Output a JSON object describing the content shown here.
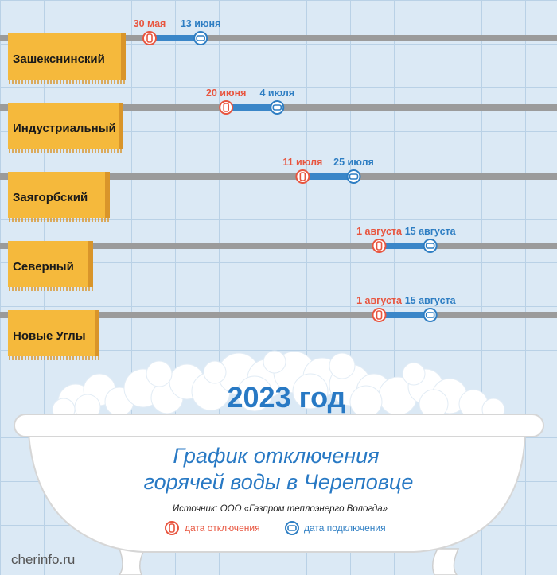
{
  "chart_data": {
    "type": "gantt",
    "title": "2023 год",
    "subtitle": "График отключения горячей воды в Череповце",
    "rows": [
      {
        "district": "Зашекснинский",
        "off_label": "30 мая",
        "on_label": "13 июня",
        "off_date": "2023-05-30",
        "on_date": "2023-06-13"
      },
      {
        "district": "Индустриальный",
        "off_label": "20 июня",
        "on_label": "4 июля",
        "off_date": "2023-06-20",
        "on_date": "2023-07-04"
      },
      {
        "district": "Заягорбский",
        "off_label": "11 июля",
        "on_label": "25 июля",
        "off_date": "2023-07-11",
        "on_date": "2023-07-25"
      },
      {
        "district": "Северный",
        "off_label": "1 августа",
        "on_label": "15 августа",
        "off_date": "2023-08-01",
        "on_date": "2023-08-15"
      },
      {
        "district": "Новые Углы",
        "off_label": "1 августа",
        "on_label": "15 августа",
        "off_date": "2023-08-01",
        "on_date": "2023-08-15"
      }
    ]
  },
  "texts": {
    "year_title": "2023 год",
    "subtitle_line1": "График отключения",
    "subtitle_line2": "горячей воды в Череповце",
    "source": "Источник: ООО «Газпром теплоэнерго Вологда»",
    "legend_off": "дата отключения",
    "legend_on": "дата подключения",
    "watermark": "cherinfo.ru"
  },
  "colors": {
    "background": "#dbe9f5",
    "tile_grid": "#b9d1e6",
    "pipe": "#9b9b9b",
    "pipe_highlight": "#3a86c8",
    "towel": "#f5b93c",
    "towel_shadow": "#d9952a",
    "off_color": "#e8553f",
    "on_color": "#2e7ec3",
    "title_blue": "#2879c4",
    "bathtub": "#ffffff",
    "bathtub_shadow": "#d9d9d9"
  }
}
